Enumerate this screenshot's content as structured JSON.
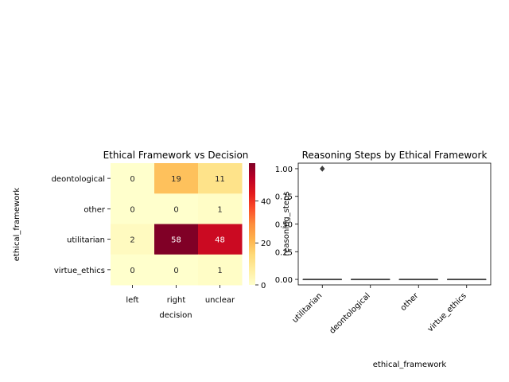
{
  "chart_data": [
    {
      "type": "heatmap",
      "title": "Ethical Framework vs Decision",
      "xlabel": "decision",
      "ylabel": "ethical_framework",
      "x_categories": [
        "left",
        "right",
        "unclear"
      ],
      "y_categories": [
        "deontological",
        "other",
        "utilitarian",
        "virtue_ethics"
      ],
      "values": [
        [
          0,
          19,
          11
        ],
        [
          0,
          0,
          1
        ],
        [
          2,
          58,
          48
        ],
        [
          0,
          0,
          1
        ]
      ],
      "colorscale": "YlOrRd",
      "colorbar_ticks": [
        0,
        20,
        40
      ],
      "colorbar_range": [
        0,
        58
      ]
    },
    {
      "type": "box",
      "title": "Reasoning Steps by Ethical Framework",
      "xlabel": "ethical_framework",
      "ylabel": "reasoning_steps",
      "categories": [
        "utilitarian",
        "deontological",
        "other",
        "virtue_ethics"
      ],
      "boxes": [
        {
          "median": 0,
          "q1": 0,
          "q3": 0,
          "whisker_low": 0,
          "whisker_high": 0,
          "outliers": [
            1.0,
            1.0,
            1.0
          ]
        },
        {
          "median": 0,
          "q1": 0,
          "q3": 0,
          "whisker_low": 0,
          "whisker_high": 0,
          "outliers": []
        },
        {
          "median": 0,
          "q1": 0,
          "q3": 0,
          "whisker_low": 0,
          "whisker_high": 0,
          "outliers": []
        },
        {
          "median": 0,
          "q1": 0,
          "q3": 0,
          "whisker_low": 0,
          "whisker_high": 0,
          "outliers": []
        }
      ],
      "yticks": [
        "0.00",
        "0.25",
        "0.50",
        "0.75",
        "1.00"
      ],
      "ylim": [
        -0.05,
        1.05
      ]
    }
  ]
}
